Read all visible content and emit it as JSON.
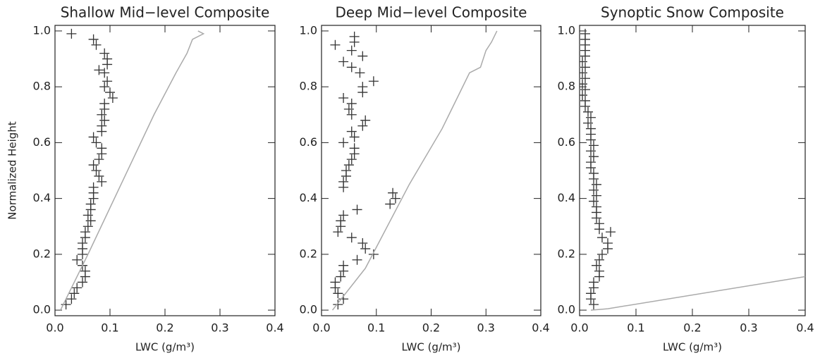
{
  "chart_data": [
    {
      "type": "scatter",
      "title": "Shallow Mid−level Composite",
      "xlabel": "LWC (g/m³)",
      "ylabel": "Normalized Height",
      "xlim": [
        0,
        0.4
      ],
      "ylim": [
        -0.02,
        1.02
      ],
      "xticks": [
        {
          "value": 0,
          "label": "0.0"
        },
        0.1,
        0.2,
        0.3,
        0.4
      ],
      "yticks": [
        {
          "value": 0,
          "label": "0.0"
        },
        0.2,
        0.4,
        0.6,
        0.8,
        {
          "value": 1,
          "label": "1.0"
        }
      ],
      "marker_color": "#333333",
      "line_color": "#aaaaaa",
      "scatter_x": [
        0.03,
        0.07,
        0.075,
        0.09,
        0.095,
        0.095,
        0.08,
        0.09,
        0.095,
        0.09,
        0.1,
        0.105,
        0.09,
        0.09,
        0.085,
        0.09,
        0.085,
        0.085,
        0.07,
        0.075,
        0.085,
        0.085,
        0.08,
        0.07,
        0.075,
        0.08,
        0.085,
        0.07,
        0.07,
        0.07,
        0.065,
        0.065,
        0.06,
        0.065,
        0.06,
        0.055,
        0.055,
        0.05,
        0.05,
        0.05,
        0.04,
        0.05,
        0.055,
        0.055,
        0.05,
        0.04,
        0.035,
        0.03,
        0.02
      ],
      "scatter_y": [
        0.99,
        0.97,
        0.95,
        0.92,
        0.9,
        0.88,
        0.86,
        0.85,
        0.82,
        0.8,
        0.78,
        0.76,
        0.74,
        0.72,
        0.7,
        0.68,
        0.66,
        0.64,
        0.62,
        0.6,
        0.58,
        0.56,
        0.54,
        0.52,
        0.5,
        0.48,
        0.46,
        0.44,
        0.42,
        0.4,
        0.38,
        0.36,
        0.34,
        0.32,
        0.3,
        0.28,
        0.26,
        0.24,
        0.22,
        0.2,
        0.18,
        0.16,
        0.14,
        0.12,
        0.1,
        0.08,
        0.06,
        0.04,
        0.02
      ],
      "line_x": [
        0.01,
        0.06,
        0.12,
        0.18,
        0.22,
        0.24,
        0.25,
        0.27,
        0.26
      ],
      "line_y": [
        0,
        0.2,
        0.45,
        0.7,
        0.85,
        0.92,
        0.97,
        0.99,
        1.0
      ]
    },
    {
      "type": "scatter",
      "title": "Deep Mid−level Composite",
      "xlabel": "LWC (g/m³)",
      "xlim": [
        0,
        0.4
      ],
      "ylim": [
        -0.02,
        1.02
      ],
      "xticks": [
        {
          "value": 0,
          "label": "0.0"
        },
        0.1,
        0.2,
        0.3,
        0.4
      ],
      "yticks": [
        {
          "value": 0,
          "label": "0.0"
        },
        0.2,
        0.4,
        0.6,
        0.8,
        {
          "value": 1,
          "label": "1.0"
        }
      ],
      "marker_color": "#333333",
      "line_color": "#aaaaaa",
      "scatter_x": [
        0.06,
        0.06,
        0.025,
        0.055,
        0.075,
        0.04,
        0.055,
        0.07,
        0.095,
        0.075,
        0.075,
        0.04,
        0.055,
        0.05,
        0.055,
        0.08,
        0.075,
        0.055,
        0.06,
        0.04,
        0.06,
        0.06,
        0.055,
        0.05,
        0.045,
        0.045,
        0.04,
        0.04,
        0.13,
        0.135,
        0.125,
        0.065,
        0.04,
        0.035,
        0.035,
        0.03,
        0.055,
        0.075,
        0.08,
        0.095,
        0.065,
        0.04,
        0.04,
        0.035,
        0.025,
        0.025,
        0.03,
        0.04,
        0.03
      ],
      "scatter_y": [
        0.98,
        0.96,
        0.95,
        0.93,
        0.91,
        0.89,
        0.87,
        0.85,
        0.82,
        0.8,
        0.78,
        0.76,
        0.74,
        0.72,
        0.7,
        0.68,
        0.66,
        0.64,
        0.62,
        0.6,
        0.58,
        0.56,
        0.54,
        0.52,
        0.5,
        0.48,
        0.46,
        0.44,
        0.42,
        0.4,
        0.38,
        0.36,
        0.34,
        0.32,
        0.3,
        0.28,
        0.26,
        0.24,
        0.22,
        0.2,
        0.18,
        0.16,
        0.14,
        0.12,
        0.1,
        0.08,
        0.06,
        0.04,
        0.02
      ],
      "line_x": [
        0.02,
        0.08,
        0.16,
        0.22,
        0.27,
        0.29,
        0.3,
        0.31,
        0.32
      ],
      "line_y": [
        0,
        0.15,
        0.45,
        0.65,
        0.85,
        0.87,
        0.93,
        0.96,
        1.0
      ]
    },
    {
      "type": "scatter",
      "title": "Synoptic Snow Composite",
      "xlabel": "LWC (g/m³)",
      "xlim": [
        0,
        0.4
      ],
      "ylim": [
        -0.02,
        1.02
      ],
      "xticks": [
        {
          "value": 0,
          "label": "0.0"
        },
        0.1,
        0.2,
        0.3,
        0.4
      ],
      "yticks": [
        {
          "value": 0,
          "label": "0.0"
        },
        0.2,
        0.4,
        0.6,
        0.8,
        {
          "value": 1,
          "label": "1.0"
        }
      ],
      "marker_color": "#333333",
      "line_color": "#aaaaaa",
      "scatter_x": [
        0.01,
        0.01,
        0.01,
        0.01,
        0.01,
        0.005,
        0.01,
        0.005,
        0.01,
        0.005,
        0.01,
        0.005,
        0.01,
        0.01,
        0.015,
        0.02,
        0.015,
        0.02,
        0.02,
        0.02,
        0.025,
        0.02,
        0.025,
        0.02,
        0.02,
        0.025,
        0.025,
        0.03,
        0.025,
        0.03,
        0.025,
        0.03,
        0.03,
        0.03,
        0.035,
        0.035,
        0.055,
        0.04,
        0.05,
        0.05,
        0.04,
        0.035,
        0.03,
        0.035,
        0.035,
        0.025,
        0.025,
        0.02,
        0.02,
        0.025
      ],
      "scatter_y": [
        0.99,
        0.97,
        0.95,
        0.93,
        0.91,
        0.89,
        0.87,
        0.85,
        0.83,
        0.81,
        0.79,
        0.77,
        0.75,
        0.73,
        0.71,
        0.69,
        0.67,
        0.65,
        0.63,
        0.61,
        0.59,
        0.57,
        0.55,
        0.53,
        0.51,
        0.49,
        0.47,
        0.45,
        0.43,
        0.41,
        0.39,
        0.37,
        0.35,
        0.33,
        0.31,
        0.29,
        0.28,
        0.26,
        0.24,
        0.22,
        0.2,
        0.18,
        0.16,
        0.14,
        0.12,
        0.1,
        0.08,
        0.06,
        0.04,
        0.02
      ],
      "line_x": [
        0.02,
        0.05,
        0.4
      ],
      "line_y": [
        0,
        0.005,
        0.12
      ]
    }
  ]
}
